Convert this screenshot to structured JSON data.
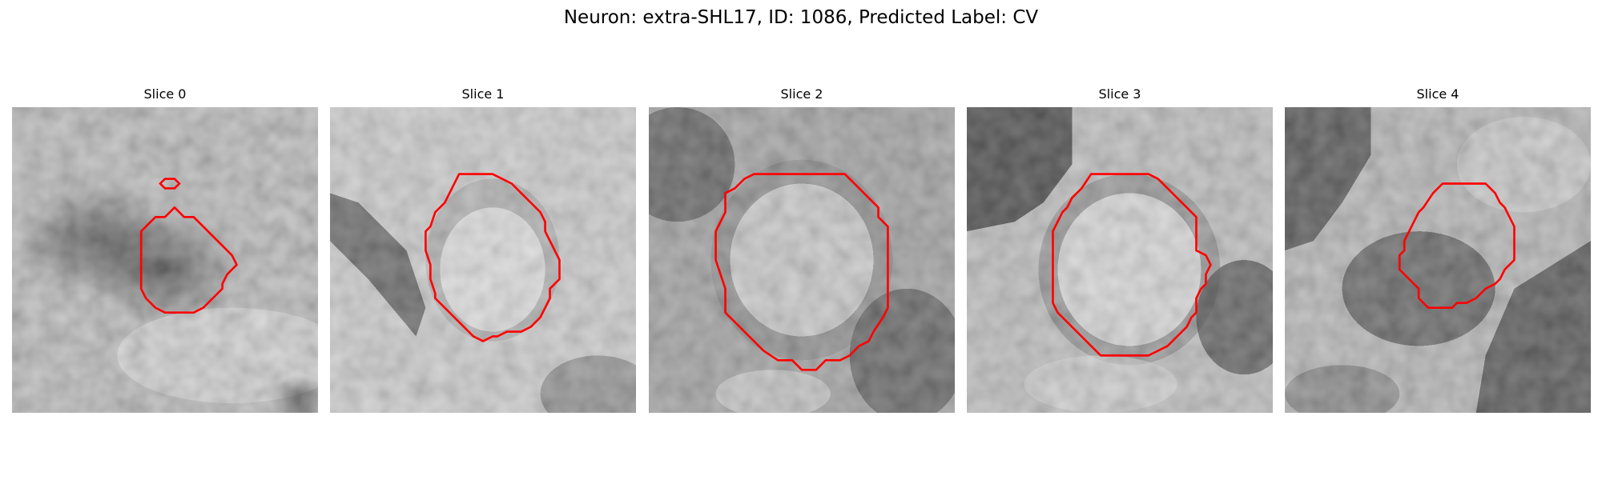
{
  "figure": {
    "title": "Neuron: extra-SHL17, ID: 1086, Predicted Label: CV"
  },
  "contour_color": "#ff0000",
  "panels": [
    {
      "title": "Slice 0"
    },
    {
      "title": "Slice 1"
    },
    {
      "title": "Slice 2"
    },
    {
      "title": "Slice 3"
    },
    {
      "title": "Slice 4"
    }
  ]
}
